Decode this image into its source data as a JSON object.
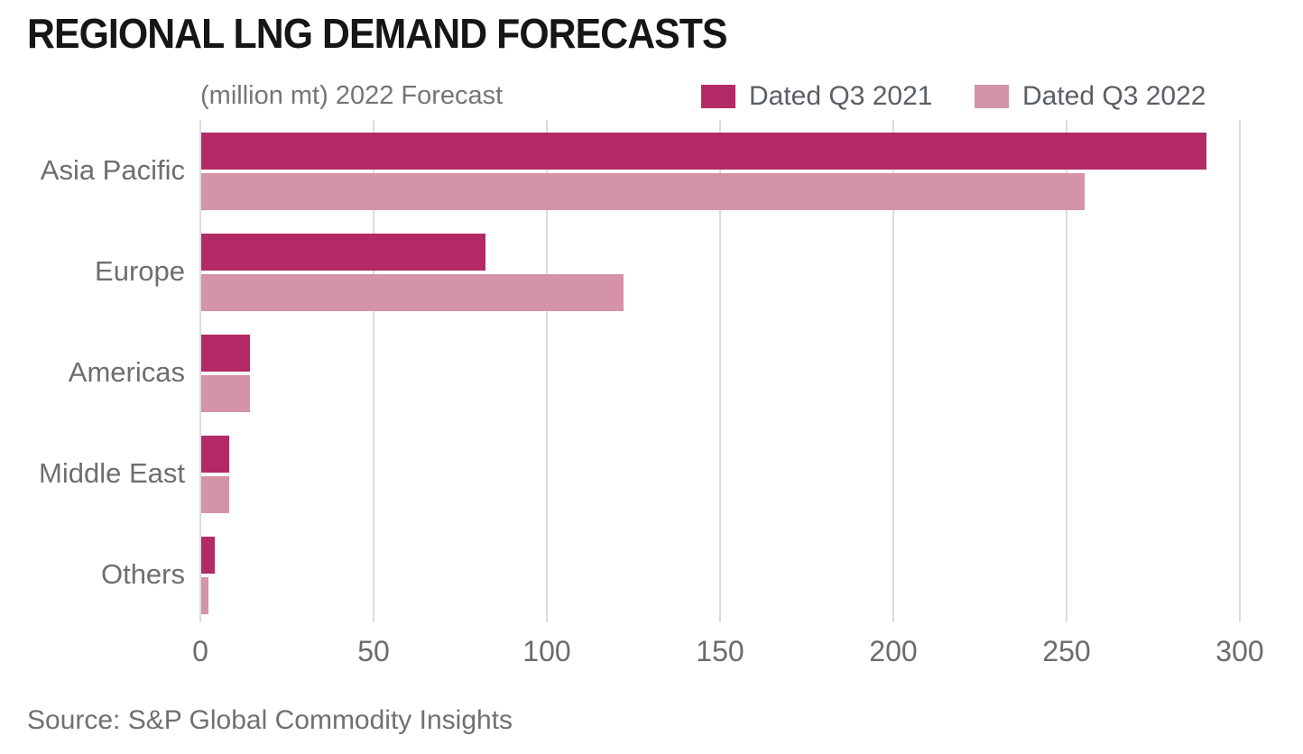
{
  "title": "REGIONAL LNG DEMAND FORECASTS",
  "subtitle": "(million mt) 2022 Forecast",
  "source": "Source: S&P Global Commodity Insights",
  "legend": [
    {
      "label": "Dated Q3 2021",
      "color": "#b32a66"
    },
    {
      "label": "Dated Q3 2022",
      "color": "#d593a7"
    }
  ],
  "colors": {
    "series_q3_2021": "#b32a66",
    "series_q3_2022": "#d593a7",
    "gridline": "#dcdcdc",
    "title_text": "#161616",
    "label_text": "#6e6e6e"
  },
  "chart_data": {
    "type": "bar",
    "orientation": "horizontal",
    "title": "REGIONAL LNG DEMAND FORECASTS",
    "subtitle": "(million mt) 2022 Forecast",
    "xlabel": "",
    "ylabel": "",
    "unit": "million mt",
    "xlim": [
      0,
      300
    ],
    "xticks": [
      0,
      50,
      100,
      150,
      200,
      250,
      300
    ],
    "grid": true,
    "legend_position": "top-right",
    "categories": [
      "Asia Pacific",
      "Europe",
      "Americas",
      "Middle East",
      "Others"
    ],
    "series": [
      {
        "name": "Dated Q3 2021",
        "color": "#b32a66",
        "values": [
          290,
          82,
          14,
          8,
          4
        ]
      },
      {
        "name": "Dated Q3 2022",
        "color": "#d593a7",
        "values": [
          255,
          122,
          14,
          8,
          2
        ]
      }
    ]
  }
}
